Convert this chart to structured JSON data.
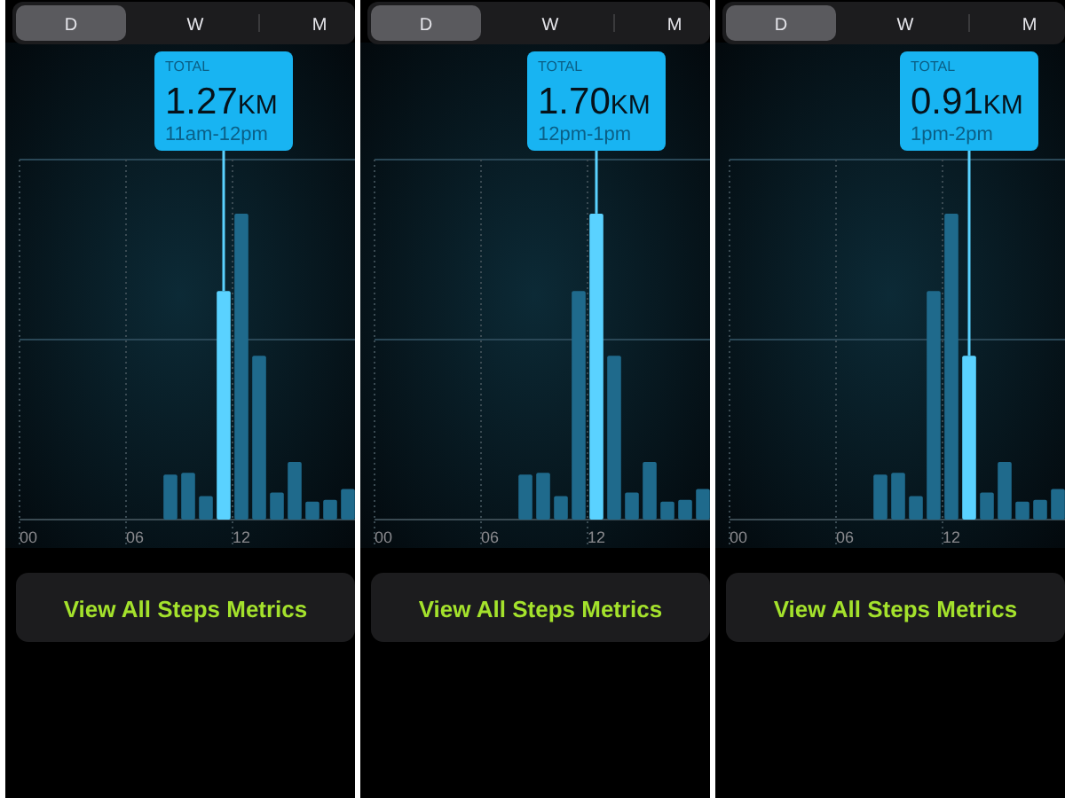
{
  "chart_data": [
    {
      "type": "bar",
      "categories": [
        "00",
        null,
        null,
        null,
        null,
        null,
        "06",
        null,
        null,
        null,
        null,
        null,
        "12",
        null,
        null,
        null,
        null,
        null,
        null
      ],
      "values": [
        0,
        0,
        0,
        0,
        0,
        0,
        0,
        0,
        0.25,
        0.26,
        0.13,
        1.27,
        1.7,
        0.91,
        0.15,
        0.32,
        0.1,
        0.11,
        0.17
      ],
      "colors": [
        "#1f6a8c",
        "#1f6a8c",
        "#1f6a8c",
        "#1f6a8c",
        "#1f6a8c",
        "#1f6a8c",
        "#1f6a8c",
        "#1f6a8c",
        "#1f6a8c",
        "#1f6a8c",
        "#1f6a8c",
        "#5ad2ff",
        "#1f6a8c",
        "#1f6a8c",
        "#1f6a8c",
        "#1f6a8c",
        "#1f6a8c",
        "#1f6a8c",
        "#1f6a8c"
      ],
      "value_labels": [
        null,
        null,
        null,
        null,
        null,
        null,
        null,
        null,
        null,
        null,
        null,
        "1.27KM",
        null,
        null,
        null,
        null,
        null,
        null,
        null
      ],
      "ylim": [
        0,
        2
      ],
      "ref_lines": [
        {
          "axis": "y",
          "value": 1,
          "color": "#2a4756"
        },
        {
          "axis": "y",
          "value": 2,
          "color": "#2a4756"
        }
      ],
      "grid": "x",
      "tick_labels": "x",
      "annotations": [
        "TOTAL",
        "11am-12pm",
        "D",
        "W",
        "M",
        "View All Steps Metrics"
      ]
    },
    {
      "type": "bar",
      "categories": [
        "00",
        null,
        null,
        null,
        null,
        null,
        "06",
        null,
        null,
        null,
        null,
        null,
        "12",
        null,
        null,
        null,
        null,
        null,
        null
      ],
      "values": [
        0,
        0,
        0,
        0,
        0,
        0,
        0,
        0,
        0.25,
        0.26,
        0.13,
        1.27,
        1.7,
        0.91,
        0.15,
        0.32,
        0.1,
        0.11,
        0.17
      ],
      "colors": [
        "#1f6a8c",
        "#1f6a8c",
        "#1f6a8c",
        "#1f6a8c",
        "#1f6a8c",
        "#1f6a8c",
        "#1f6a8c",
        "#1f6a8c",
        "#1f6a8c",
        "#1f6a8c",
        "#1f6a8c",
        "#1f6a8c",
        "#5ad2ff",
        "#1f6a8c",
        "#1f6a8c",
        "#1f6a8c",
        "#1f6a8c",
        "#1f6a8c",
        "#1f6a8c"
      ],
      "value_labels": [
        null,
        null,
        null,
        null,
        null,
        null,
        null,
        null,
        null,
        null,
        null,
        null,
        "1.70KM",
        null,
        null,
        null,
        null,
        null,
        null
      ],
      "ylim": [
        0,
        2
      ],
      "ref_lines": [
        {
          "axis": "y",
          "value": 1,
          "color": "#2a4756"
        },
        {
          "axis": "y",
          "value": 2,
          "color": "#2a4756"
        }
      ],
      "grid": "x",
      "tick_labels": "x",
      "annotations": [
        "TOTAL",
        "12pm-1pm",
        "D",
        "W",
        "M",
        "View All Steps Metrics"
      ]
    },
    {
      "type": "bar",
      "categories": [
        "00",
        null,
        null,
        null,
        null,
        null,
        "06",
        null,
        null,
        null,
        null,
        null,
        "12",
        null,
        null,
        null,
        null,
        null,
        null
      ],
      "values": [
        0,
        0,
        0,
        0,
        0,
        0,
        0,
        0,
        0.25,
        0.26,
        0.13,
        1.27,
        1.7,
        0.91,
        0.15,
        0.32,
        0.1,
        0.11,
        0.17
      ],
      "colors": [
        "#1f6a8c",
        "#1f6a8c",
        "#1f6a8c",
        "#1f6a8c",
        "#1f6a8c",
        "#1f6a8c",
        "#1f6a8c",
        "#1f6a8c",
        "#1f6a8c",
        "#1f6a8c",
        "#1f6a8c",
        "#1f6a8c",
        "#1f6a8c",
        "#5ad2ff",
        "#1f6a8c",
        "#1f6a8c",
        "#1f6a8c",
        "#1f6a8c",
        "#1f6a8c"
      ],
      "value_labels": [
        null,
        null,
        null,
        null,
        null,
        null,
        null,
        null,
        null,
        null,
        null,
        null,
        null,
        "0.91KM",
        null,
        null,
        null,
        null,
        null
      ],
      "ylim": [
        0,
        2
      ],
      "ref_lines": [
        {
          "axis": "y",
          "value": 1,
          "color": "#2a4756"
        },
        {
          "axis": "y",
          "value": 2,
          "color": "#2a4756"
        }
      ],
      "grid": "x",
      "tick_labels": "x",
      "annotations": [
        "TOTAL",
        "1pm-2pm",
        "D",
        "W",
        "M",
        "View All Steps Metrics"
      ]
    }
  ]
}
